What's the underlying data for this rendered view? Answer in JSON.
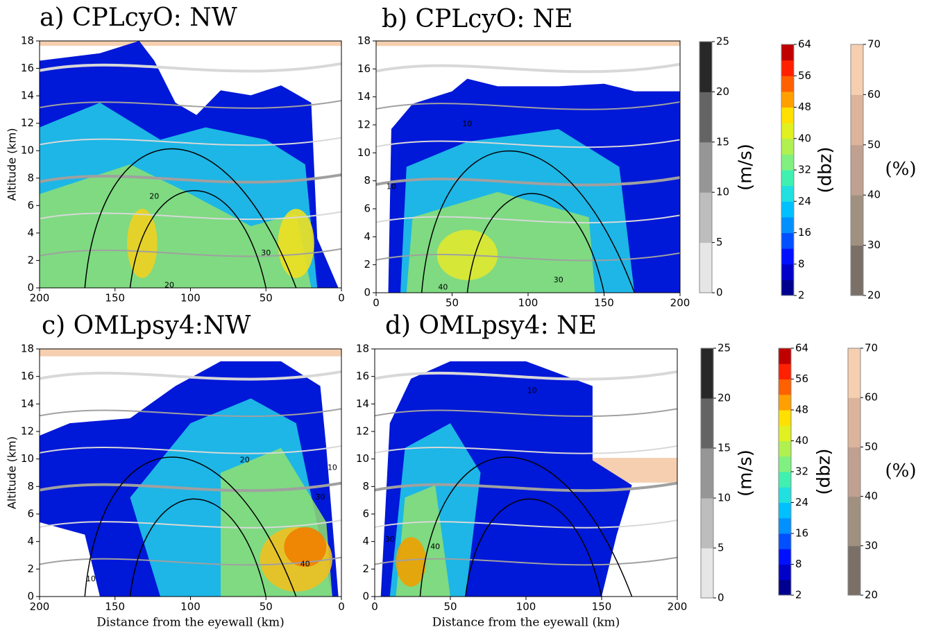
{
  "chart_data": [
    {
      "type": "contour",
      "title": "a) CPLcyO: NW",
      "ylabel": "Altitude (km)",
      "xlim": [
        200,
        0
      ],
      "xticks": [
        200,
        150,
        100,
        50,
        0
      ],
      "ylim": [
        0,
        18
      ],
      "yticks": [
        0,
        2,
        4,
        6,
        8,
        10,
        12,
        14,
        16,
        18
      ],
      "contour_labels": [
        20,
        30,
        20
      ]
    },
    {
      "type": "contour",
      "title": "b) CPLcyO: NE",
      "xlim": [
        0,
        200
      ],
      "xticks": [
        0,
        50,
        100,
        150,
        200
      ],
      "ylim": [
        0,
        18
      ],
      "yticks": [
        0,
        2,
        4,
        6,
        8,
        10,
        12,
        14,
        16,
        18
      ],
      "contour_labels": [
        10,
        10,
        40,
        30
      ]
    },
    {
      "type": "contour",
      "title": "c) OMLpsy4:NW",
      "ylabel": "Altitude (km)",
      "xlabel": "Distance from the eyewall (km)",
      "xlim": [
        200,
        0
      ],
      "xticks": [
        200,
        150,
        100,
        50,
        0
      ],
      "ylim": [
        0,
        18
      ],
      "yticks": [
        0,
        2,
        4,
        6,
        8,
        10,
        12,
        14,
        16,
        18
      ],
      "contour_labels": [
        20,
        30,
        40,
        10,
        10
      ]
    },
    {
      "type": "contour",
      "title": "d) OMLpsy4: NE",
      "xlabel": "Distance from the eyewall (km)",
      "xlim": [
        0,
        200
      ],
      "xticks": [
        0,
        50,
        100,
        150,
        200
      ],
      "ylim": [
        0,
        18
      ],
      "yticks": [
        0,
        2,
        4,
        6,
        8,
        10,
        12,
        14,
        16,
        18
      ],
      "contour_labels": [
        10,
        30,
        40
      ]
    }
  ],
  "colorbars": [
    {
      "label": "(m/s)",
      "ticks": [
        0,
        5,
        10,
        15,
        20,
        25
      ],
      "colors": [
        "#e6e6e6",
        "#bdbdbd",
        "#969696",
        "#646464",
        "#282828"
      ]
    },
    {
      "label": "(dbz)",
      "ticks": [
        2,
        8,
        16,
        24,
        32,
        40,
        48,
        56,
        64
      ],
      "colors": [
        "#00008f",
        "#0000c8",
        "#0010ff",
        "#0050ff",
        "#0090ff",
        "#00c0ff",
        "#20e0e0",
        "#40f0b0",
        "#80f080",
        "#b0f050",
        "#e0f020",
        "#ffe000",
        "#ffa000",
        "#ff6000",
        "#ff2000",
        "#c00000"
      ]
    },
    {
      "label": "(%)",
      "ticks": [
        20,
        30,
        40,
        50,
        60,
        70
      ],
      "colors": [
        "#7a7068",
        "#a09080",
        "#c0a090",
        "#dcb49c",
        "#f5cfb0"
      ]
    },
    {
      "label": "(m/s)",
      "ticks": [
        0,
        5,
        10,
        15,
        20,
        25
      ],
      "colors": [
        "#e6e6e6",
        "#bdbdbd",
        "#969696",
        "#646464",
        "#282828"
      ]
    },
    {
      "label": "(dbz)",
      "ticks": [
        2,
        8,
        16,
        24,
        32,
        40,
        48,
        56,
        64
      ],
      "colors": [
        "#00008f",
        "#0000c8",
        "#0010ff",
        "#0050ff",
        "#0090ff",
        "#00c0ff",
        "#20e0e0",
        "#40f0b0",
        "#80f080",
        "#b0f050",
        "#e0f020",
        "#ffe000",
        "#ffa000",
        "#ff6000",
        "#ff2000",
        "#c00000"
      ]
    },
    {
      "label": "(%)",
      "ticks": [
        20,
        30,
        40,
        50,
        60,
        70
      ],
      "colors": [
        "#7a7068",
        "#a09080",
        "#c0a090",
        "#dcb49c",
        "#f5cfb0"
      ]
    }
  ]
}
